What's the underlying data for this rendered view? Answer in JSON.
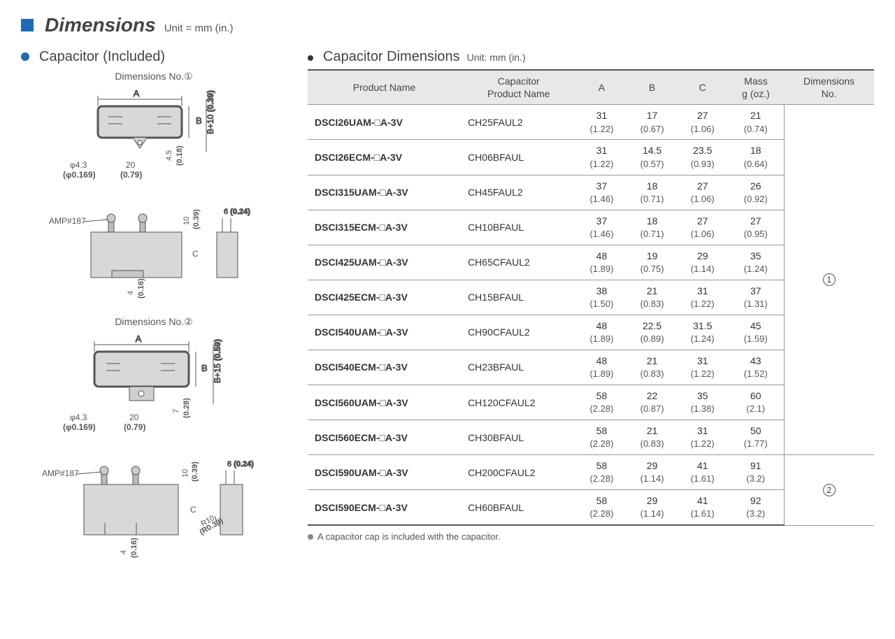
{
  "header": {
    "title": "Dimensions",
    "unit": "Unit = mm (in.)"
  },
  "left": {
    "heading": "Capacitor (Included)",
    "dim1_label": "Dimensions No.①",
    "dim2_label": "Dimensions No.②",
    "amp_label": "AMP#187",
    "dims": {
      "phi": "φ4.3",
      "phi_in": "(φ0.169)",
      "w20": "20",
      "w20_in": "(0.79)",
      "h45": "4.5",
      "h45_in": "(0.18)",
      "b10": "B+10",
      "b10_in": "(0.39)",
      "t10": "10",
      "t10_in": "(0.39)",
      "s6": "6",
      "s6_in": "(0.24)",
      "b4": "4",
      "b4_in": "(0.16)",
      "b15": "B+15",
      "b15_in": "(0.59)",
      "h7": "7",
      "h7_in": "(0.28)",
      "r10": "R10",
      "r10_in": "(R0.39)"
    }
  },
  "right": {
    "heading": "Capacitor Dimensions",
    "unit": "Unit: mm (in.)",
    "columns": [
      "Product Name",
      "Capacitor Product Name",
      "A",
      "B",
      "C",
      "Mass g (oz.)",
      "Dimensions No."
    ],
    "rows": [
      {
        "p": "DSCI26UAM-□A-3V",
        "c": "CH25FAUL2",
        "a": "31",
        "ai": "(1.22)",
        "b": "17",
        "bi": "(0.67)",
        "cc": "27",
        "ci": "(1.06)",
        "m": "21",
        "mi": "(0.74)",
        "d": "①",
        "dspan": 10
      },
      {
        "p": "DSCI26ECM-□A-3V",
        "c": "CH06BFAUL",
        "a": "31",
        "ai": "(1.22)",
        "b": "14.5",
        "bi": "(0.57)",
        "cc": "23.5",
        "ci": "(0.93)",
        "m": "18",
        "mi": "(0.64)"
      },
      {
        "p": "DSCI315UAM-□A-3V",
        "c": "CH45FAUL2",
        "a": "37",
        "ai": "(1.46)",
        "b": "18",
        "bi": "(0.71)",
        "cc": "27",
        "ci": "(1.06)",
        "m": "26",
        "mi": "(0.92)"
      },
      {
        "p": "DSCI315ECM-□A-3V",
        "c": "CH10BFAUL",
        "a": "37",
        "ai": "(1.46)",
        "b": "18",
        "bi": "(0.71)",
        "cc": "27",
        "ci": "(1.06)",
        "m": "27",
        "mi": "(0.95)"
      },
      {
        "p": "DSCI425UAM-□A-3V",
        "c": "CH65CFAUL2",
        "a": "48",
        "ai": "(1.89)",
        "b": "19",
        "bi": "(0.75)",
        "cc": "29",
        "ci": "(1.14)",
        "m": "35",
        "mi": "(1.24)"
      },
      {
        "p": "DSCI425ECM-□A-3V",
        "c": "CH15BFAUL",
        "a": "38",
        "ai": "(1.50)",
        "b": "21",
        "bi": "(0.83)",
        "cc": "31",
        "ci": "(1.22)",
        "m": "37",
        "mi": "(1.31)"
      },
      {
        "p": "DSCI540UAM-□A-3V",
        "c": "CH90CFAUL2",
        "a": "48",
        "ai": "(1.89)",
        "b": "22.5",
        "bi": "(0.89)",
        "cc": "31.5",
        "ci": "(1.24)",
        "m": "45",
        "mi": "(1.59)"
      },
      {
        "p": "DSCI540ECM-□A-3V",
        "c": "CH23BFAUL",
        "a": "48",
        "ai": "(1.89)",
        "b": "21",
        "bi": "(0.83)",
        "cc": "31",
        "ci": "(1.22)",
        "m": "43",
        "mi": "(1.52)"
      },
      {
        "p": "DSCI560UAM-□A-3V",
        "c": "CH120CFAUL2",
        "a": "58",
        "ai": "(2.28)",
        "b": "22",
        "bi": "(0.87)",
        "cc": "35",
        "ci": "(1.38)",
        "m": "60",
        "mi": "(2.1)"
      },
      {
        "p": "DSCI560ECM-□A-3V",
        "c": "CH30BFAUL",
        "a": "58",
        "ai": "(2.28)",
        "b": "21",
        "bi": "(0.83)",
        "cc": "31",
        "ci": "(1.22)",
        "m": "50",
        "mi": "(1.77)"
      },
      {
        "p": "DSCI590UAM-□A-3V",
        "c": "CH200CFAUL2",
        "a": "58",
        "ai": "(2.28)",
        "b": "29",
        "bi": "(1.14)",
        "cc": "41",
        "ci": "(1.61)",
        "m": "91",
        "mi": "(3.2)",
        "d": "②",
        "dspan": 2
      },
      {
        "p": "DSCI590ECM-□A-3V",
        "c": "CH60BFAUL",
        "a": "58",
        "ai": "(2.28)",
        "b": "29",
        "bi": "(1.14)",
        "cc": "41",
        "ci": "(1.61)",
        "m": "92",
        "mi": "(3.2)"
      }
    ],
    "note": "A capacitor cap is included with the capacitor."
  }
}
